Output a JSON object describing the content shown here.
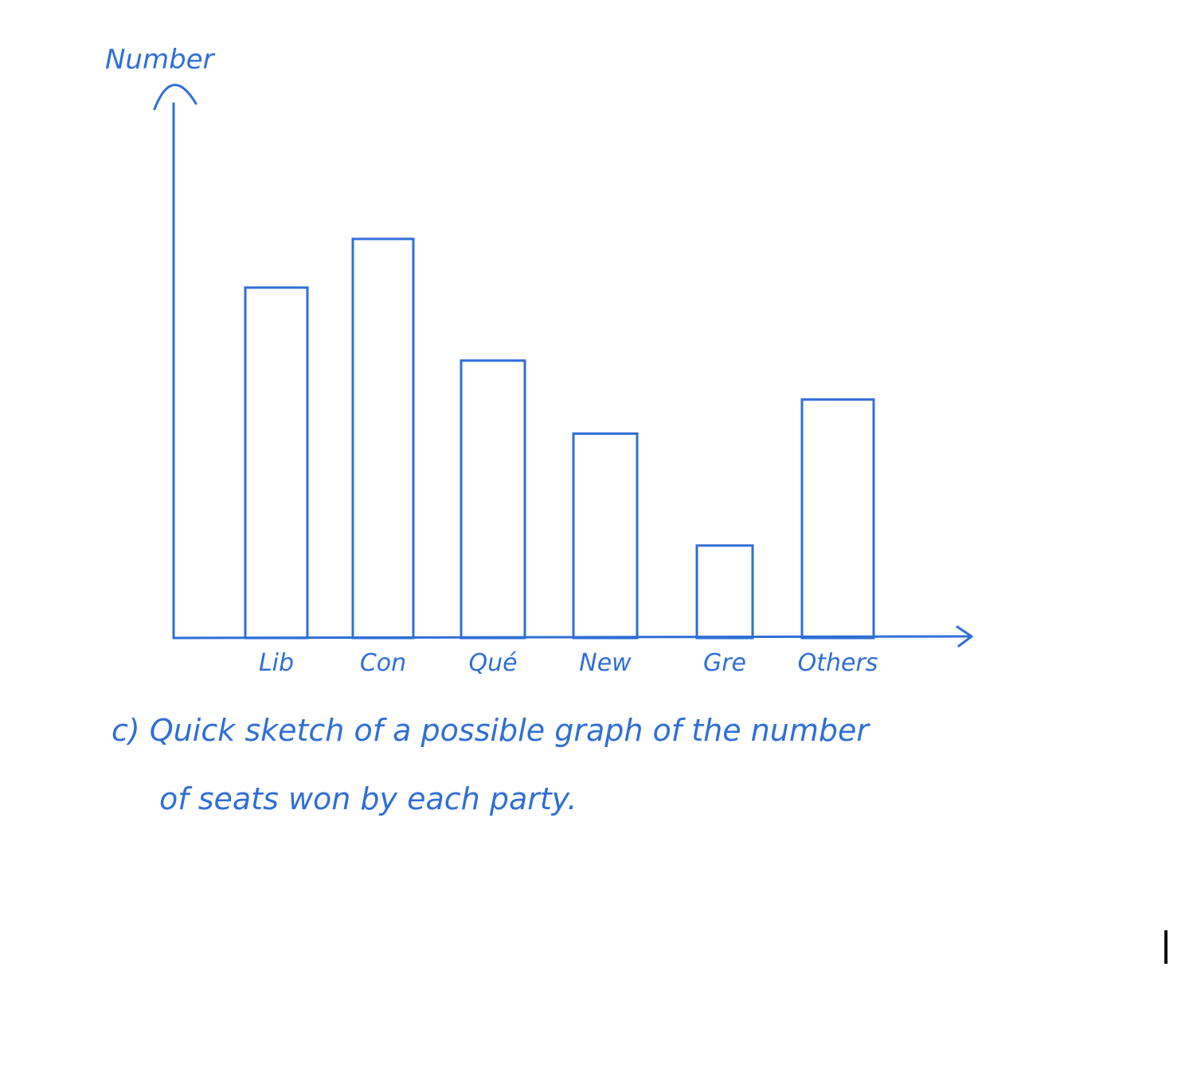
{
  "chart_data": {
    "type": "bar",
    "title": "",
    "ylabel": "Number",
    "xlabel": "",
    "categories": [
      "Lib",
      "Con",
      "Qué",
      "New",
      "Gre",
      "Others"
    ],
    "values": [
      72,
      82,
      57,
      42,
      19,
      49
    ],
    "ylim": [
      0,
      100
    ],
    "grid": false,
    "legend": "none",
    "bar_fill": "none",
    "color": "#2f6fd6"
  },
  "caption": {
    "line1": "c) Quick sketch of a possible graph of the number",
    "line2": "of seats won by each party."
  }
}
